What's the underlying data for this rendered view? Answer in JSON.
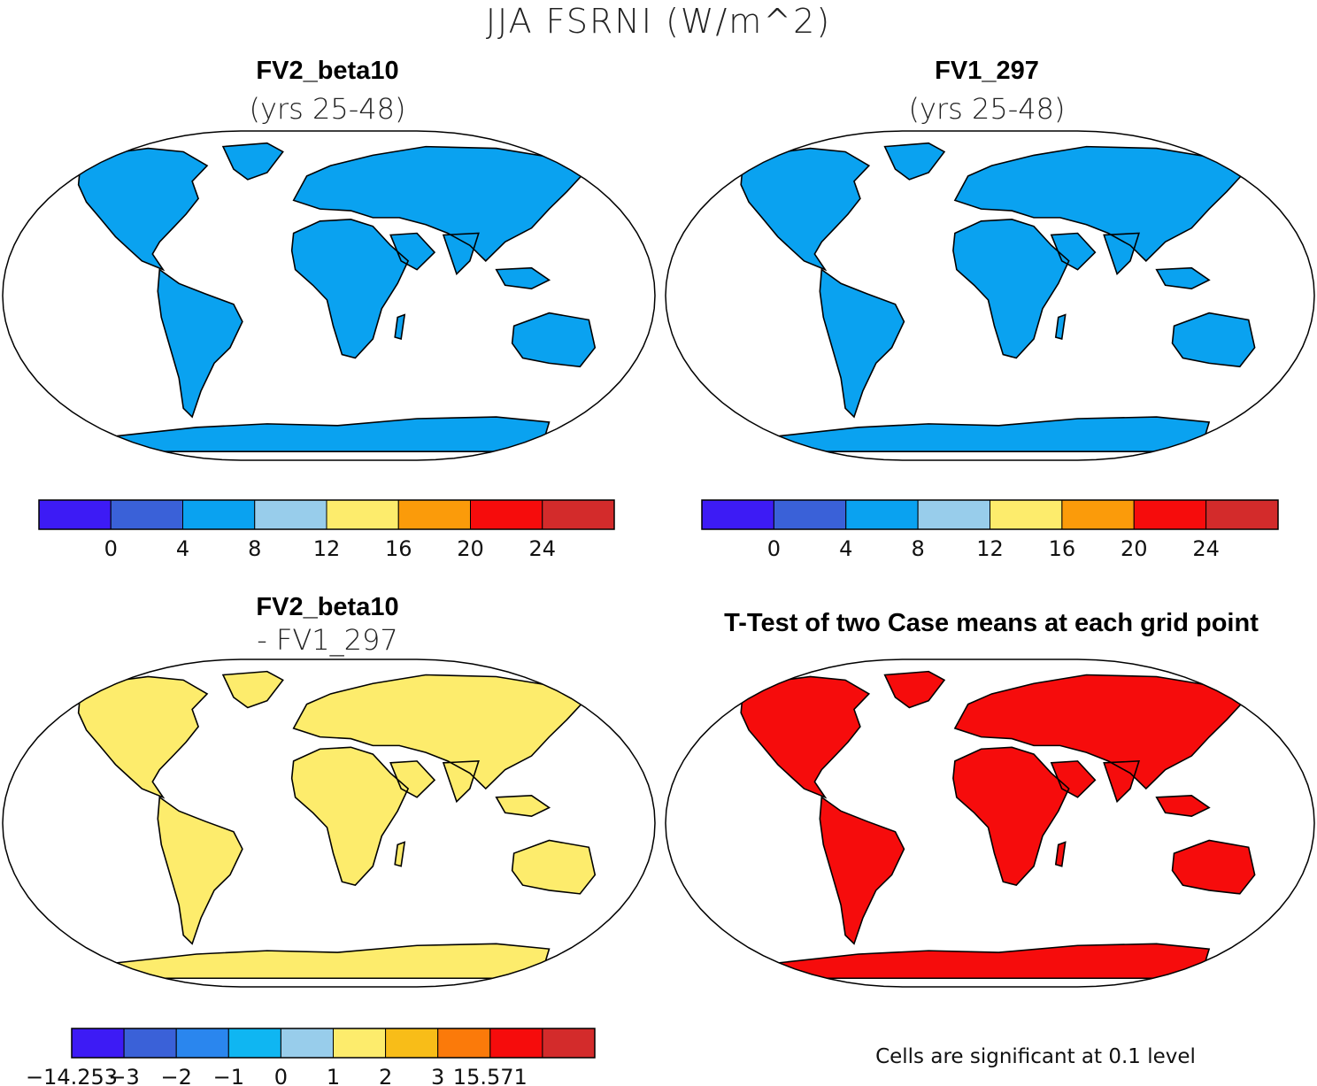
{
  "figure": {
    "title": "JJA FSRNI (W/m^2)"
  },
  "panels": [
    {
      "title": "FV2_beta10",
      "subtitle": "(yrs 25-48)"
    },
    {
      "title": "FV1_297",
      "subtitle": "(yrs 25-48)"
    },
    {
      "title": "FV2_beta10",
      "subtitle": "- FV1_297"
    },
    {
      "title": "T-Test of two Case means at each grid point",
      "note": "Cells are significant at 0.1 level"
    }
  ],
  "chart_data": [
    {
      "type": "heatmap",
      "title": "FV2_beta10 (yrs 25-48)",
      "projection": "Robinson",
      "colorbar": {
        "ticks": [
          "0",
          "4",
          "8",
          "12",
          "16",
          "20",
          "24"
        ],
        "colors": [
          "#3d1bf5",
          "#3a61d8",
          "#0aa2f0",
          "#98cdeb",
          "#fdec6c",
          "#fb9b0a",
          "#f60c0c",
          "#d32b2b"
        ]
      }
    },
    {
      "type": "heatmap",
      "title": "FV1_297 (yrs 25-48)",
      "projection": "Robinson",
      "colorbar": {
        "ticks": [
          "0",
          "4",
          "8",
          "12",
          "16",
          "20",
          "24"
        ],
        "colors": [
          "#3d1bf5",
          "#3a61d8",
          "#0aa2f0",
          "#98cdeb",
          "#fdec6c",
          "#fb9b0a",
          "#f60c0c",
          "#d32b2b"
        ]
      }
    },
    {
      "type": "heatmap",
      "title": "FV2_beta10 - FV1_297",
      "projection": "Robinson",
      "colorbar": {
        "ticks": [
          "−14.253",
          "−3",
          "−2",
          "−1",
          "0",
          "1",
          "2",
          "3",
          "15.571"
        ],
        "colors": [
          "#3d1bf5",
          "#3a61d8",
          "#2a86ee",
          "#0fb6f2",
          "#98cdeb",
          "#fdec6c",
          "#f8bd18",
          "#fb7a0a",
          "#f60c0c",
          "#d32b2b"
        ]
      }
    },
    {
      "type": "heatmap",
      "title": "T-Test of two Case means at each grid point",
      "projection": "Robinson",
      "significance_level": 0.1,
      "colors": [
        "#f60c0c"
      ]
    }
  ]
}
